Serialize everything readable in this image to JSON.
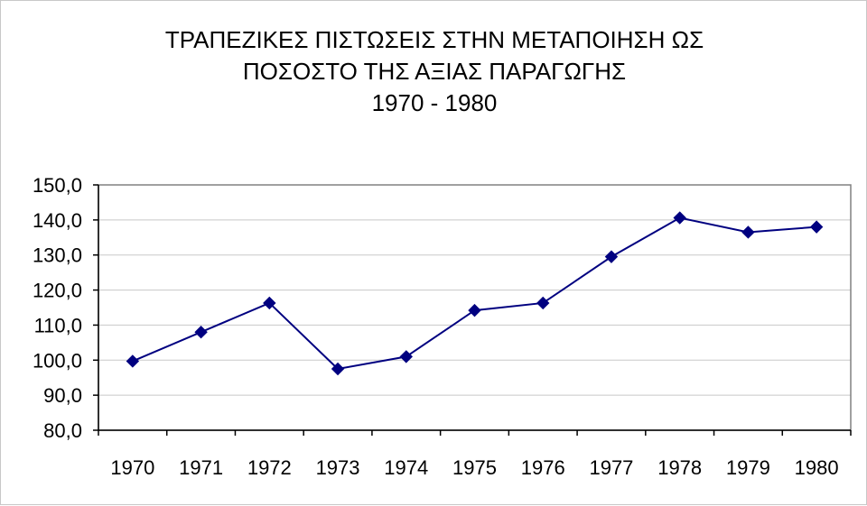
{
  "chart_data": {
    "type": "line",
    "title_lines": [
      "ΤΡΑΠΕΖΙΚΕΣ ΠΙΣΤΩΣΕΙΣ ΣΤΗΝ ΜΕΤΑΠΟΙΗΣΗ ΩΣ",
      "ΠΟΣΟΣΤΟ ΤΗΣ ΑΞΙΑΣ ΠΑΡΑΓΩΓΗΣ",
      "1970 - 1980"
    ],
    "xlabel": "",
    "ylabel": "",
    "categories": [
      "1970",
      "1971",
      "1972",
      "1973",
      "1974",
      "1975",
      "1976",
      "1977",
      "1978",
      "1979",
      "1980"
    ],
    "series": [
      {
        "values": [
          99.7,
          108.0,
          116.3,
          97.5,
          101.0,
          114.2,
          116.3,
          129.5,
          140.6,
          136.5,
          138.0
        ]
      }
    ],
    "ylim": [
      80,
      150
    ],
    "yticks": [
      80,
      90,
      100,
      110,
      120,
      130,
      140,
      150
    ],
    "ytick_labels": [
      "80,0",
      "90,0",
      "100,0",
      "110,0",
      "120,0",
      "130,0",
      "140,0",
      "150,0"
    ],
    "grid": true,
    "legend": "none",
    "colors": {
      "line": "#000080",
      "marker": "#000080",
      "grid": "#c8c8c8",
      "axis": "#808080"
    }
  }
}
